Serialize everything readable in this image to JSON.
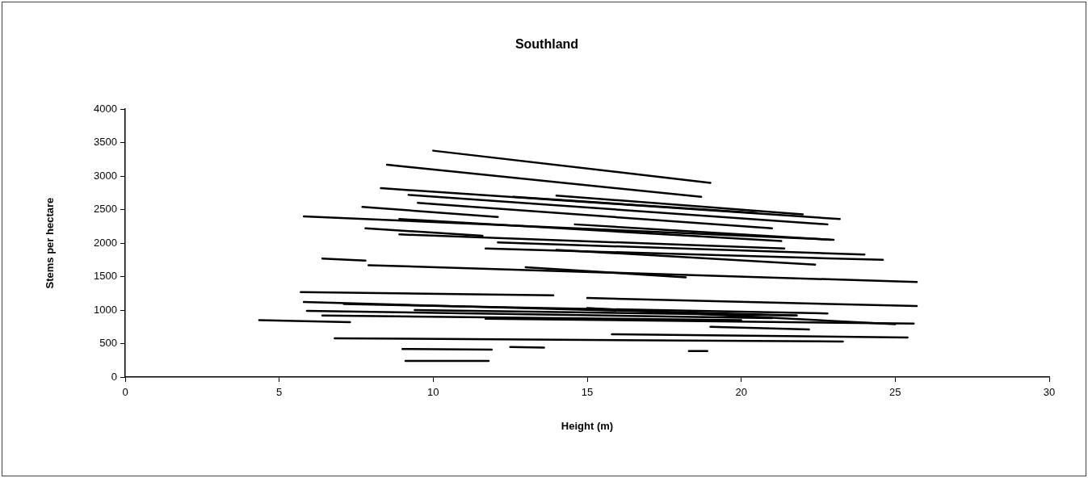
{
  "chart_data": {
    "type": "line",
    "title": "Southland",
    "xlabel": "Height (m)",
    "ylabel": "Stems per hectare",
    "xlim": [
      0,
      30
    ],
    "xticks": [
      0,
      5,
      10,
      15,
      20,
      25,
      30
    ],
    "ylim": [
      0,
      4000
    ],
    "yticks": [
      0,
      500,
      1000,
      1500,
      2000,
      2500,
      3000,
      3500,
      4000
    ],
    "grid": false,
    "legend": false,
    "marker": "none",
    "line_style": "solid",
    "series": [
      {
        "color": "#000000",
        "x": [
          10.0,
          19.0
        ],
        "values": [
          3380,
          2900
        ]
      },
      {
        "color": "#000000",
        "x": [
          8.5,
          18.7
        ],
        "values": [
          3170,
          2690
        ]
      },
      {
        "color": "#000000",
        "x": [
          8.3,
          23.2
        ],
        "values": [
          2820,
          2360
        ]
      },
      {
        "color": "#000000",
        "x": [
          9.2,
          22.8
        ],
        "values": [
          2720,
          2280
        ]
      },
      {
        "color": "#000000",
        "x": [
          9.5,
          21.0
        ],
        "values": [
          2600,
          2220
        ]
      },
      {
        "color": "#000000",
        "x": [
          12.6,
          20.5
        ],
        "values": [
          2690,
          2450
        ]
      },
      {
        "color": "#000000",
        "x": [
          14.0,
          22.0
        ],
        "values": [
          2710,
          2430
        ]
      },
      {
        "color": "#000000",
        "x": [
          7.7,
          12.1
        ],
        "values": [
          2540,
          2390
        ]
      },
      {
        "color": "#000000",
        "x": [
          5.8,
          23.0
        ],
        "values": [
          2400,
          2050
        ]
      },
      {
        "color": "#000000",
        "x": [
          8.9,
          21.3
        ],
        "values": [
          2360,
          2030
        ]
      },
      {
        "color": "#000000",
        "x": [
          14.6,
          22.9
        ],
        "values": [
          2280,
          2050
        ]
      },
      {
        "color": "#000000",
        "x": [
          7.8,
          11.6
        ],
        "values": [
          2220,
          2110
        ]
      },
      {
        "color": "#000000",
        "x": [
          8.9,
          21.4
        ],
        "values": [
          2130,
          1920
        ]
      },
      {
        "color": "#000000",
        "x": [
          12.1,
          24.0
        ],
        "values": [
          2010,
          1830
        ]
      },
      {
        "color": "#000000",
        "x": [
          11.7,
          24.6
        ],
        "values": [
          1920,
          1750
        ]
      },
      {
        "color": "#000000",
        "x": [
          14.0,
          22.4
        ],
        "values": [
          1900,
          1680
        ]
      },
      {
        "color": "#000000",
        "x": [
          6.4,
          7.8
        ],
        "values": [
          1770,
          1740
        ]
      },
      {
        "color": "#000000",
        "x": [
          7.9,
          25.7
        ],
        "values": [
          1670,
          1420
        ]
      },
      {
        "color": "#000000",
        "x": [
          13.0,
          18.2
        ],
        "values": [
          1640,
          1490
        ]
      },
      {
        "color": "#000000",
        "x": [
          5.7,
          13.9
        ],
        "values": [
          1270,
          1220
        ]
      },
      {
        "color": "#000000",
        "x": [
          15.0,
          25.7
        ],
        "values": [
          1180,
          1060
        ]
      },
      {
        "color": "#000000",
        "x": [
          5.8,
          21.8
        ],
        "values": [
          1120,
          920
        ]
      },
      {
        "color": "#000000",
        "x": [
          7.1,
          22.8
        ],
        "values": [
          1090,
          950
        ]
      },
      {
        "color": "#000000",
        "x": [
          15.0,
          25.0
        ],
        "values": [
          1030,
          790
        ]
      },
      {
        "color": "#000000",
        "x": [
          5.9,
          21.0
        ],
        "values": [
          990,
          880
        ]
      },
      {
        "color": "#000000",
        "x": [
          9.4,
          21.8
        ],
        "values": [
          1000,
          920
        ]
      },
      {
        "color": "#000000",
        "x": [
          6.4,
          20.0
        ],
        "values": [
          920,
          850
        ]
      },
      {
        "color": "#000000",
        "x": [
          11.7,
          25.6
        ],
        "values": [
          870,
          800
        ]
      },
      {
        "color": "#000000",
        "x": [
          4.35,
          7.3
        ],
        "values": [
          850,
          820
        ]
      },
      {
        "color": "#000000",
        "x": [
          19.0,
          22.2
        ],
        "values": [
          750,
          710
        ]
      },
      {
        "color": "#000000",
        "x": [
          15.8,
          25.4
        ],
        "values": [
          640,
          590
        ]
      },
      {
        "color": "#000000",
        "x": [
          6.8,
          23.3
        ],
        "values": [
          580,
          530
        ]
      },
      {
        "color": "#000000",
        "x": [
          9.0,
          11.9
        ],
        "values": [
          420,
          410
        ]
      },
      {
        "color": "#000000",
        "x": [
          12.5,
          13.6
        ],
        "values": [
          450,
          440
        ]
      },
      {
        "color": "#000000",
        "x": [
          18.3,
          18.9
        ],
        "values": [
          390,
          390
        ]
      },
      {
        "color": "#000000",
        "x": [
          9.1,
          11.8
        ],
        "values": [
          240,
          240
        ]
      }
    ]
  }
}
